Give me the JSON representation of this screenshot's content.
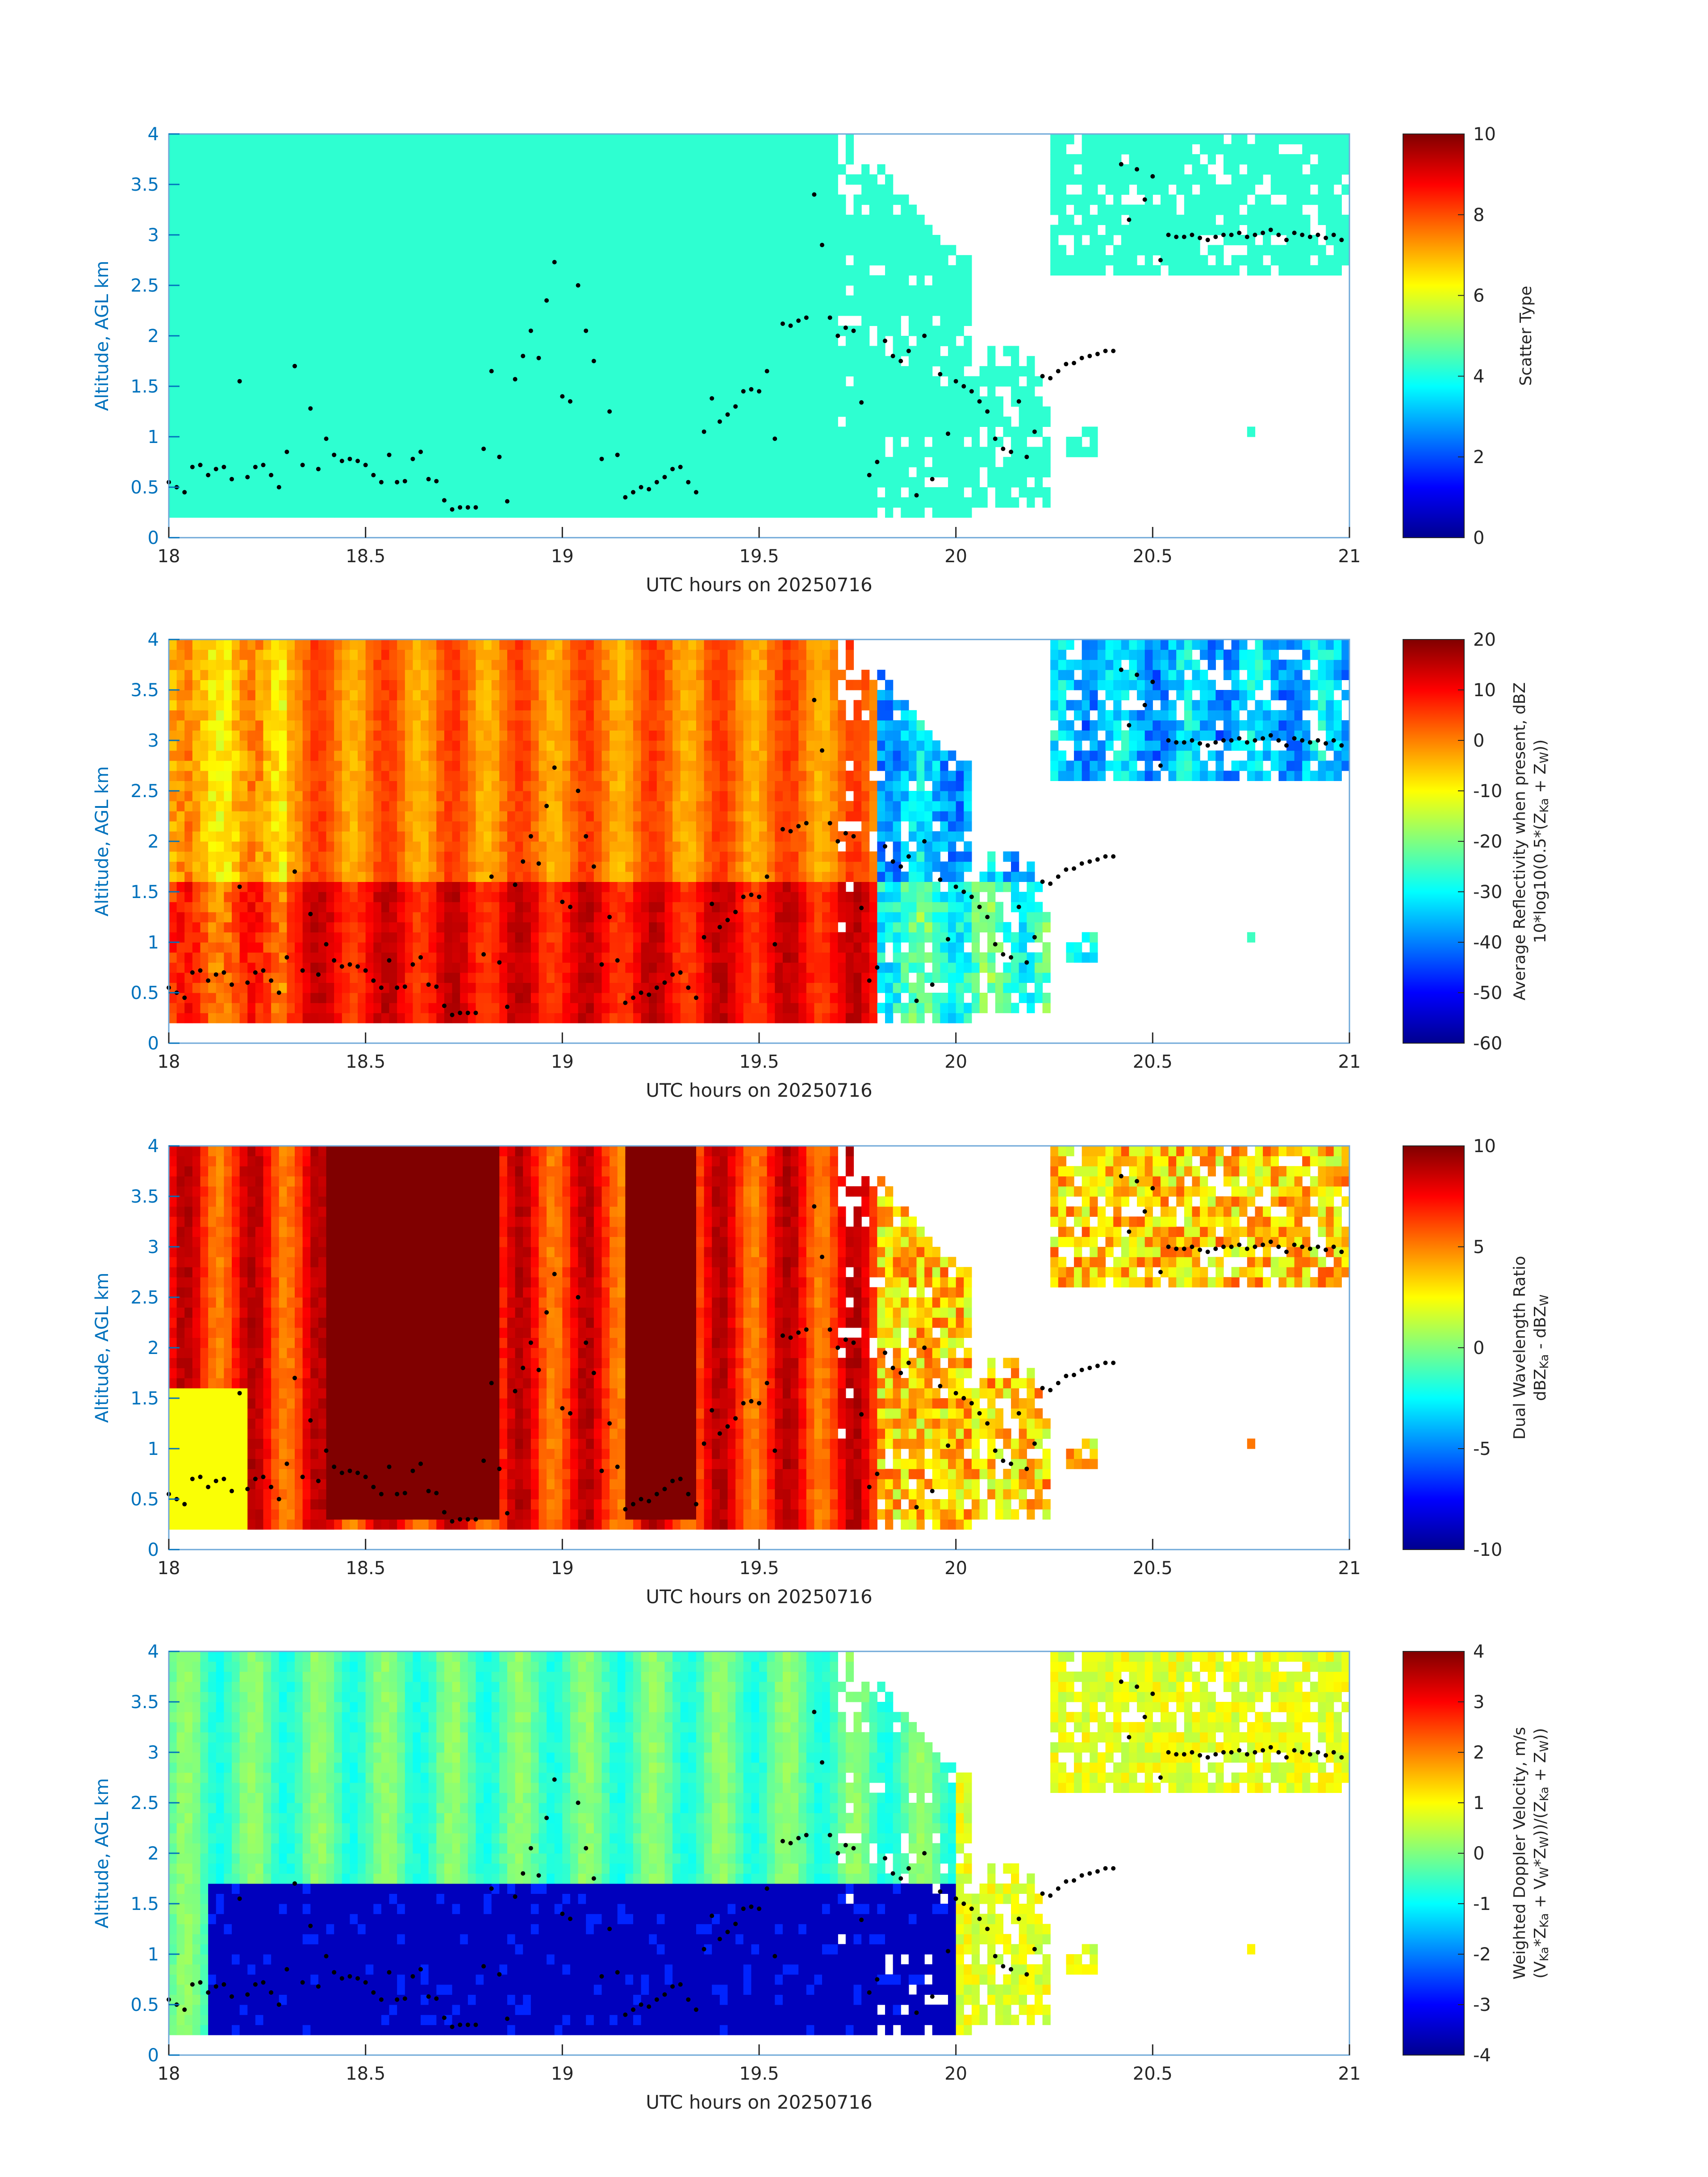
{
  "chart_data": [
    {
      "type": "heatmap",
      "xlabel": "UTC hours on 20250716",
      "ylabel": "Altitude, AGL km",
      "xlim": [
        18,
        21
      ],
      "ylim": [
        0,
        4
      ],
      "xticks": [
        "18",
        "18.5",
        "19",
        "19.5",
        "20",
        "20.5",
        "21"
      ],
      "yticks": [
        "0",
        "0.5",
        "1",
        "1.5",
        "2",
        "2.5",
        "3",
        "3.5",
        "4"
      ],
      "colorbar_label": [
        "Scatter Type"
      ],
      "colorbar_range": [
        0,
        10
      ],
      "colorbar_ticks": [
        "0",
        "2",
        "4",
        "6",
        "8",
        "10"
      ],
      "colormap": "jet",
      "field": "scatter_type",
      "description_value": 4.2
    },
    {
      "type": "heatmap",
      "xlabel": "UTC hours on 20250716",
      "ylabel": "Altitude, AGL km",
      "xlim": [
        18,
        21
      ],
      "ylim": [
        0,
        4
      ],
      "xticks": [
        "18",
        "18.5",
        "19",
        "19.5",
        "20",
        "20.5",
        "21"
      ],
      "yticks": [
        "0",
        "0.5",
        "1",
        "1.5",
        "2",
        "2.5",
        "3",
        "3.5",
        "4"
      ],
      "colorbar_label": [
        "Average Reflectivity when present, dBZ",
        "10*log10(0.5*(Z",
        "Ka",
        " + Z",
        "W",
        "))"
      ],
      "colorbar_range": [
        -60,
        20
      ],
      "colorbar_ticks": [
        "-60",
        "-50",
        "-40",
        "-30",
        "-20",
        "-10",
        "0",
        "10",
        "20"
      ],
      "colormap": "jet",
      "field": "reflectivity"
    },
    {
      "type": "heatmap",
      "xlabel": "UTC hours on 20250716",
      "ylabel": "Altitude, AGL km",
      "xlim": [
        18,
        21
      ],
      "ylim": [
        0,
        4
      ],
      "xticks": [
        "18",
        "18.5",
        "19",
        "19.5",
        "20",
        "20.5",
        "21"
      ],
      "yticks": [
        "0",
        "0.5",
        "1",
        "1.5",
        "2",
        "2.5",
        "3",
        "3.5",
        "4"
      ],
      "colorbar_label": [
        "Dual Wavelength Ratio",
        "dBZ",
        "Ka",
        " - dBZ",
        "W"
      ],
      "colorbar_range": [
        -10,
        10
      ],
      "colorbar_ticks": [
        "-10",
        "-5",
        "0",
        "5",
        "10"
      ],
      "colormap": "jet",
      "field": "dwr"
    },
    {
      "type": "heatmap",
      "xlabel": "UTC hours on 20250716",
      "ylabel": "Altitude, AGL km",
      "xlim": [
        18,
        21
      ],
      "ylim": [
        0,
        4
      ],
      "xticks": [
        "18",
        "18.5",
        "19",
        "19.5",
        "20",
        "20.5",
        "21"
      ],
      "yticks": [
        "0",
        "0.5",
        "1",
        "1.5",
        "2",
        "2.5",
        "3",
        "3.5",
        "4"
      ],
      "colorbar_label": [
        "Weighted Doppler Velocity, m/s",
        "(V",
        "Ka",
        "*Z",
        "Ka",
        " + V",
        "W",
        "*Z",
        "W",
        "))/(Z",
        "Ka",
        " + Z",
        "W",
        "))"
      ],
      "colorbar_range": [
        -4,
        4
      ],
      "colorbar_ticks": [
        "-4",
        "-3",
        "-2",
        "-1",
        "0",
        "1",
        "2",
        "3",
        "4"
      ],
      "colormap": "jet",
      "field": "doppler"
    }
  ],
  "cloud_base_points": {
    "x": [
      18.0,
      18.02,
      18.04,
      18.06,
      18.08,
      18.1,
      18.12,
      18.14,
      18.16,
      18.18,
      18.2,
      18.22,
      18.24,
      18.26,
      18.28,
      18.3,
      18.32,
      18.34,
      18.36,
      18.38,
      18.4,
      18.42,
      18.44,
      18.46,
      18.48,
      18.5,
      18.52,
      18.54,
      18.56,
      18.58,
      18.6,
      18.62,
      18.64,
      18.66,
      18.68,
      18.7,
      18.72,
      18.74,
      18.76,
      18.78,
      18.8,
      18.82,
      18.84,
      18.86,
      18.88,
      18.9,
      18.92,
      18.94,
      18.96,
      18.98,
      19.0,
      19.02,
      19.04,
      19.06,
      19.08,
      19.1,
      19.12,
      19.14,
      19.16,
      19.18,
      19.2,
      19.22,
      19.24,
      19.26,
      19.28,
      19.3,
      19.32,
      19.34,
      19.36,
      19.38,
      19.4,
      19.42,
      19.44,
      19.46,
      19.48,
      19.5,
      19.52,
      19.54,
      19.56,
      19.58,
      19.6,
      19.62,
      19.64,
      19.66,
      19.68,
      19.7,
      19.72,
      19.74,
      19.76,
      19.78,
      19.8,
      19.82,
      19.84,
      19.86,
      19.88,
      19.9,
      19.92,
      19.94,
      19.96,
      19.98,
      20.0,
      20.02,
      20.04,
      20.06,
      20.08,
      20.1,
      20.12,
      20.14,
      20.16,
      20.18,
      20.2,
      20.22,
      20.24,
      20.26,
      20.28,
      20.3,
      20.32,
      20.34,
      20.36,
      20.38,
      20.4,
      20.42,
      20.44,
      20.46,
      20.48,
      20.5,
      20.52,
      20.54,
      20.56,
      20.58,
      20.6,
      20.62,
      20.64,
      20.66,
      20.68,
      20.7,
      20.72,
      20.74,
      20.76,
      20.78,
      20.8,
      20.82,
      20.84,
      20.86,
      20.88,
      20.9,
      20.92,
      20.94,
      20.96,
      20.98
    ],
    "y": [
      0.55,
      0.5,
      0.45,
      0.7,
      0.72,
      0.62,
      0.68,
      0.7,
      0.58,
      1.55,
      0.6,
      0.7,
      0.72,
      0.62,
      0.5,
      0.85,
      1.7,
      0.72,
      1.28,
      0.68,
      0.98,
      0.82,
      0.76,
      0.78,
      0.76,
      0.72,
      0.62,
      0.55,
      0.82,
      0.55,
      0.56,
      0.78,
      0.85,
      0.58,
      0.56,
      0.37,
      0.28,
      0.3,
      0.3,
      0.3,
      0.88,
      1.65,
      0.8,
      0.36,
      1.57,
      1.8,
      2.05,
      1.78,
      2.35,
      2.73,
      1.4,
      1.35,
      2.5,
      2.05,
      1.75,
      0.78,
      1.25,
      0.82,
      0.4,
      0.45,
      0.5,
      0.48,
      0.55,
      0.6,
      0.68,
      0.7,
      0.55,
      0.45,
      1.05,
      1.38,
      1.15,
      1.22,
      1.3,
      1.45,
      1.47,
      1.45,
      1.65,
      0.98,
      2.12,
      2.1,
      2.15,
      2.18,
      3.4,
      2.9,
      2.18,
      2.0,
      2.08,
      2.05,
      1.34,
      0.62,
      0.75,
      1.95,
      1.8,
      1.75,
      1.85,
      0.42,
      2.0,
      0.58,
      1.62,
      1.03,
      1.55,
      1.5,
      1.45,
      1.35,
      1.25,
      0.98,
      0.88,
      0.85,
      1.35,
      0.8,
      1.05,
      1.6,
      1.58,
      1.65,
      1.72,
      1.73,
      1.78,
      1.8,
      1.82,
      1.85,
      1.85,
      3.7,
      3.15,
      3.65,
      3.35,
      3.58,
      2.75,
      3.0,
      2.98,
      2.98,
      3.0,
      2.97,
      2.95,
      2.98,
      3.0,
      3.0,
      3.02,
      2.98,
      3.0,
      3.02,
      3.05,
      3.0,
      2.95,
      3.02,
      3.0,
      2.98,
      3.0,
      2.97,
      3.0,
      2.95
    ]
  }
}
